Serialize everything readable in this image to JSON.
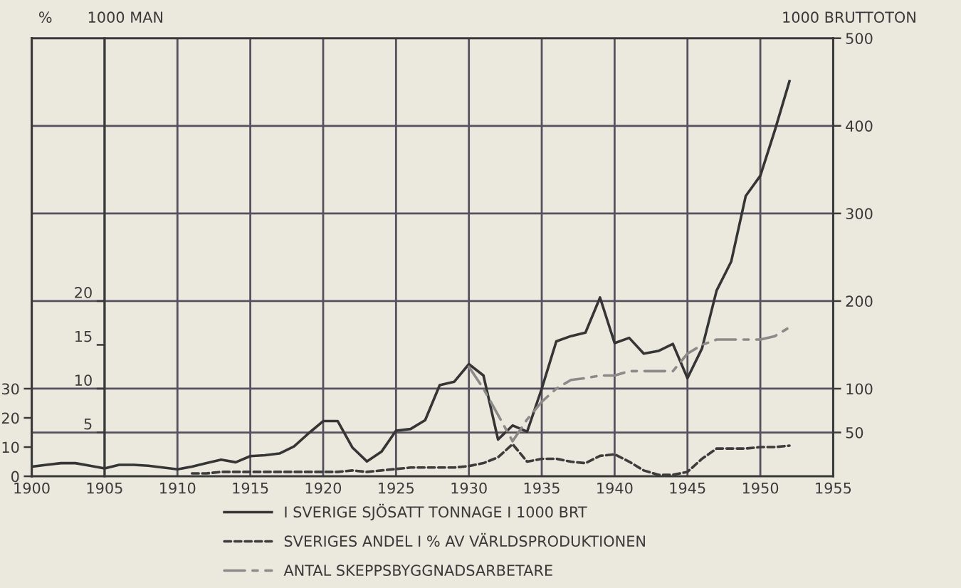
{
  "chart_data": {
    "type": "line",
    "ylabel": "%",
    "y2label": "1000 BRUTTOTON",
    "y3label": "1000 MAN",
    "xlim": [
      1900,
      1955
    ],
    "xticks": [
      1900,
      1905,
      1910,
      1915,
      1920,
      1925,
      1930,
      1935,
      1940,
      1945,
      1950,
      1955
    ],
    "ylim": [
      0,
      150
    ],
    "yticks": [
      0,
      10,
      20,
      30
    ],
    "y2lim": [
      0,
      500
    ],
    "y2ticks": [
      50,
      100,
      200,
      300,
      400,
      500
    ],
    "y3lim": [
      0,
      50
    ],
    "y3ticks": [
      5,
      10,
      15,
      20
    ],
    "grid": true,
    "legend": "bottom",
    "series": [
      {
        "name": "I SVERIGE SJÖSATT TONNAGE I 1000 BRT",
        "axis": "y2",
        "color": "#353535",
        "line_style": "solid",
        "x": [
          1900,
          1901,
          1902,
          1903,
          1904,
          1905,
          1906,
          1907,
          1908,
          1909,
          1910,
          1911,
          1912,
          1913,
          1914,
          1915,
          1916,
          1917,
          1918,
          1919,
          1920,
          1921,
          1922,
          1923,
          1924,
          1925,
          1926,
          1927,
          1928,
          1929,
          1930,
          1931,
          1932,
          1933,
          1934,
          1935,
          1936,
          1937,
          1938,
          1939,
          1940,
          1941,
          1942,
          1943,
          1944,
          1945,
          1946,
          1947,
          1948,
          1949,
          1950,
          1951,
          1952
        ],
        "values": [
          11,
          13,
          15,
          15,
          12,
          9,
          13,
          13,
          12,
          10,
          8,
          11,
          15,
          19,
          16,
          23,
          24,
          26,
          34,
          49,
          63,
          63,
          33,
          17,
          28,
          52,
          54,
          64,
          104,
          108,
          128,
          115,
          42,
          58,
          51,
          100,
          154,
          160,
          164,
          204,
          152,
          158,
          140,
          143,
          151,
          112,
          146,
          212,
          245,
          320,
          343,
          395,
          451
        ]
      },
      {
        "name": "SVERIGES ANDEL I % AV VÄRLDSPRODUKTIONEN",
        "axis": "y",
        "color": "#3c3c3c",
        "line_style": "dashed",
        "x": [
          1911,
          1912,
          1913,
          1914,
          1915,
          1916,
          1917,
          1918,
          1919,
          1920,
          1921,
          1922,
          1923,
          1924,
          1925,
          1926,
          1927,
          1928,
          1929,
          1930,
          1931,
          1932,
          1933,
          1934,
          1935,
          1936,
          1937,
          1938,
          1939,
          1940,
          1941,
          1942,
          1943,
          1944,
          1945,
          1946,
          1947,
          1948,
          1949,
          1950,
          1951,
          1952
        ],
        "values": [
          1,
          1,
          1.5,
          1.5,
          1.5,
          1.5,
          1.5,
          1.5,
          1.5,
          1.5,
          1.5,
          2,
          1.5,
          2,
          2.5,
          3,
          3,
          3,
          3,
          3.5,
          4.5,
          6.5,
          11,
          5,
          6,
          6,
          5,
          4.5,
          7,
          7.5,
          5,
          2,
          0.5,
          0.5,
          1.5,
          6,
          9.5,
          9.5,
          9.5,
          10,
          10,
          10.5
        ]
      },
      {
        "name": "ANTAL SKEPPSBYGGNADSARBETARE",
        "axis": "y3",
        "color": "#8c8a88",
        "line_style": "dashdot",
        "x": [
          1930,
          1931,
          1932,
          1933,
          1934,
          1935,
          1936,
          1937,
          1938,
          1939,
          1940,
          1941,
          1942,
          1943,
          1944,
          1945,
          1946,
          1947,
          1948,
          1949,
          1950,
          1951,
          1952
        ],
        "values": [
          12.5,
          10,
          7,
          4,
          6.5,
          8.5,
          10,
          11,
          11.2,
          11.5,
          11.5,
          12,
          12,
          12,
          12,
          14,
          15,
          15.6,
          15.6,
          15.6,
          15.6,
          16,
          17
        ]
      }
    ]
  }
}
